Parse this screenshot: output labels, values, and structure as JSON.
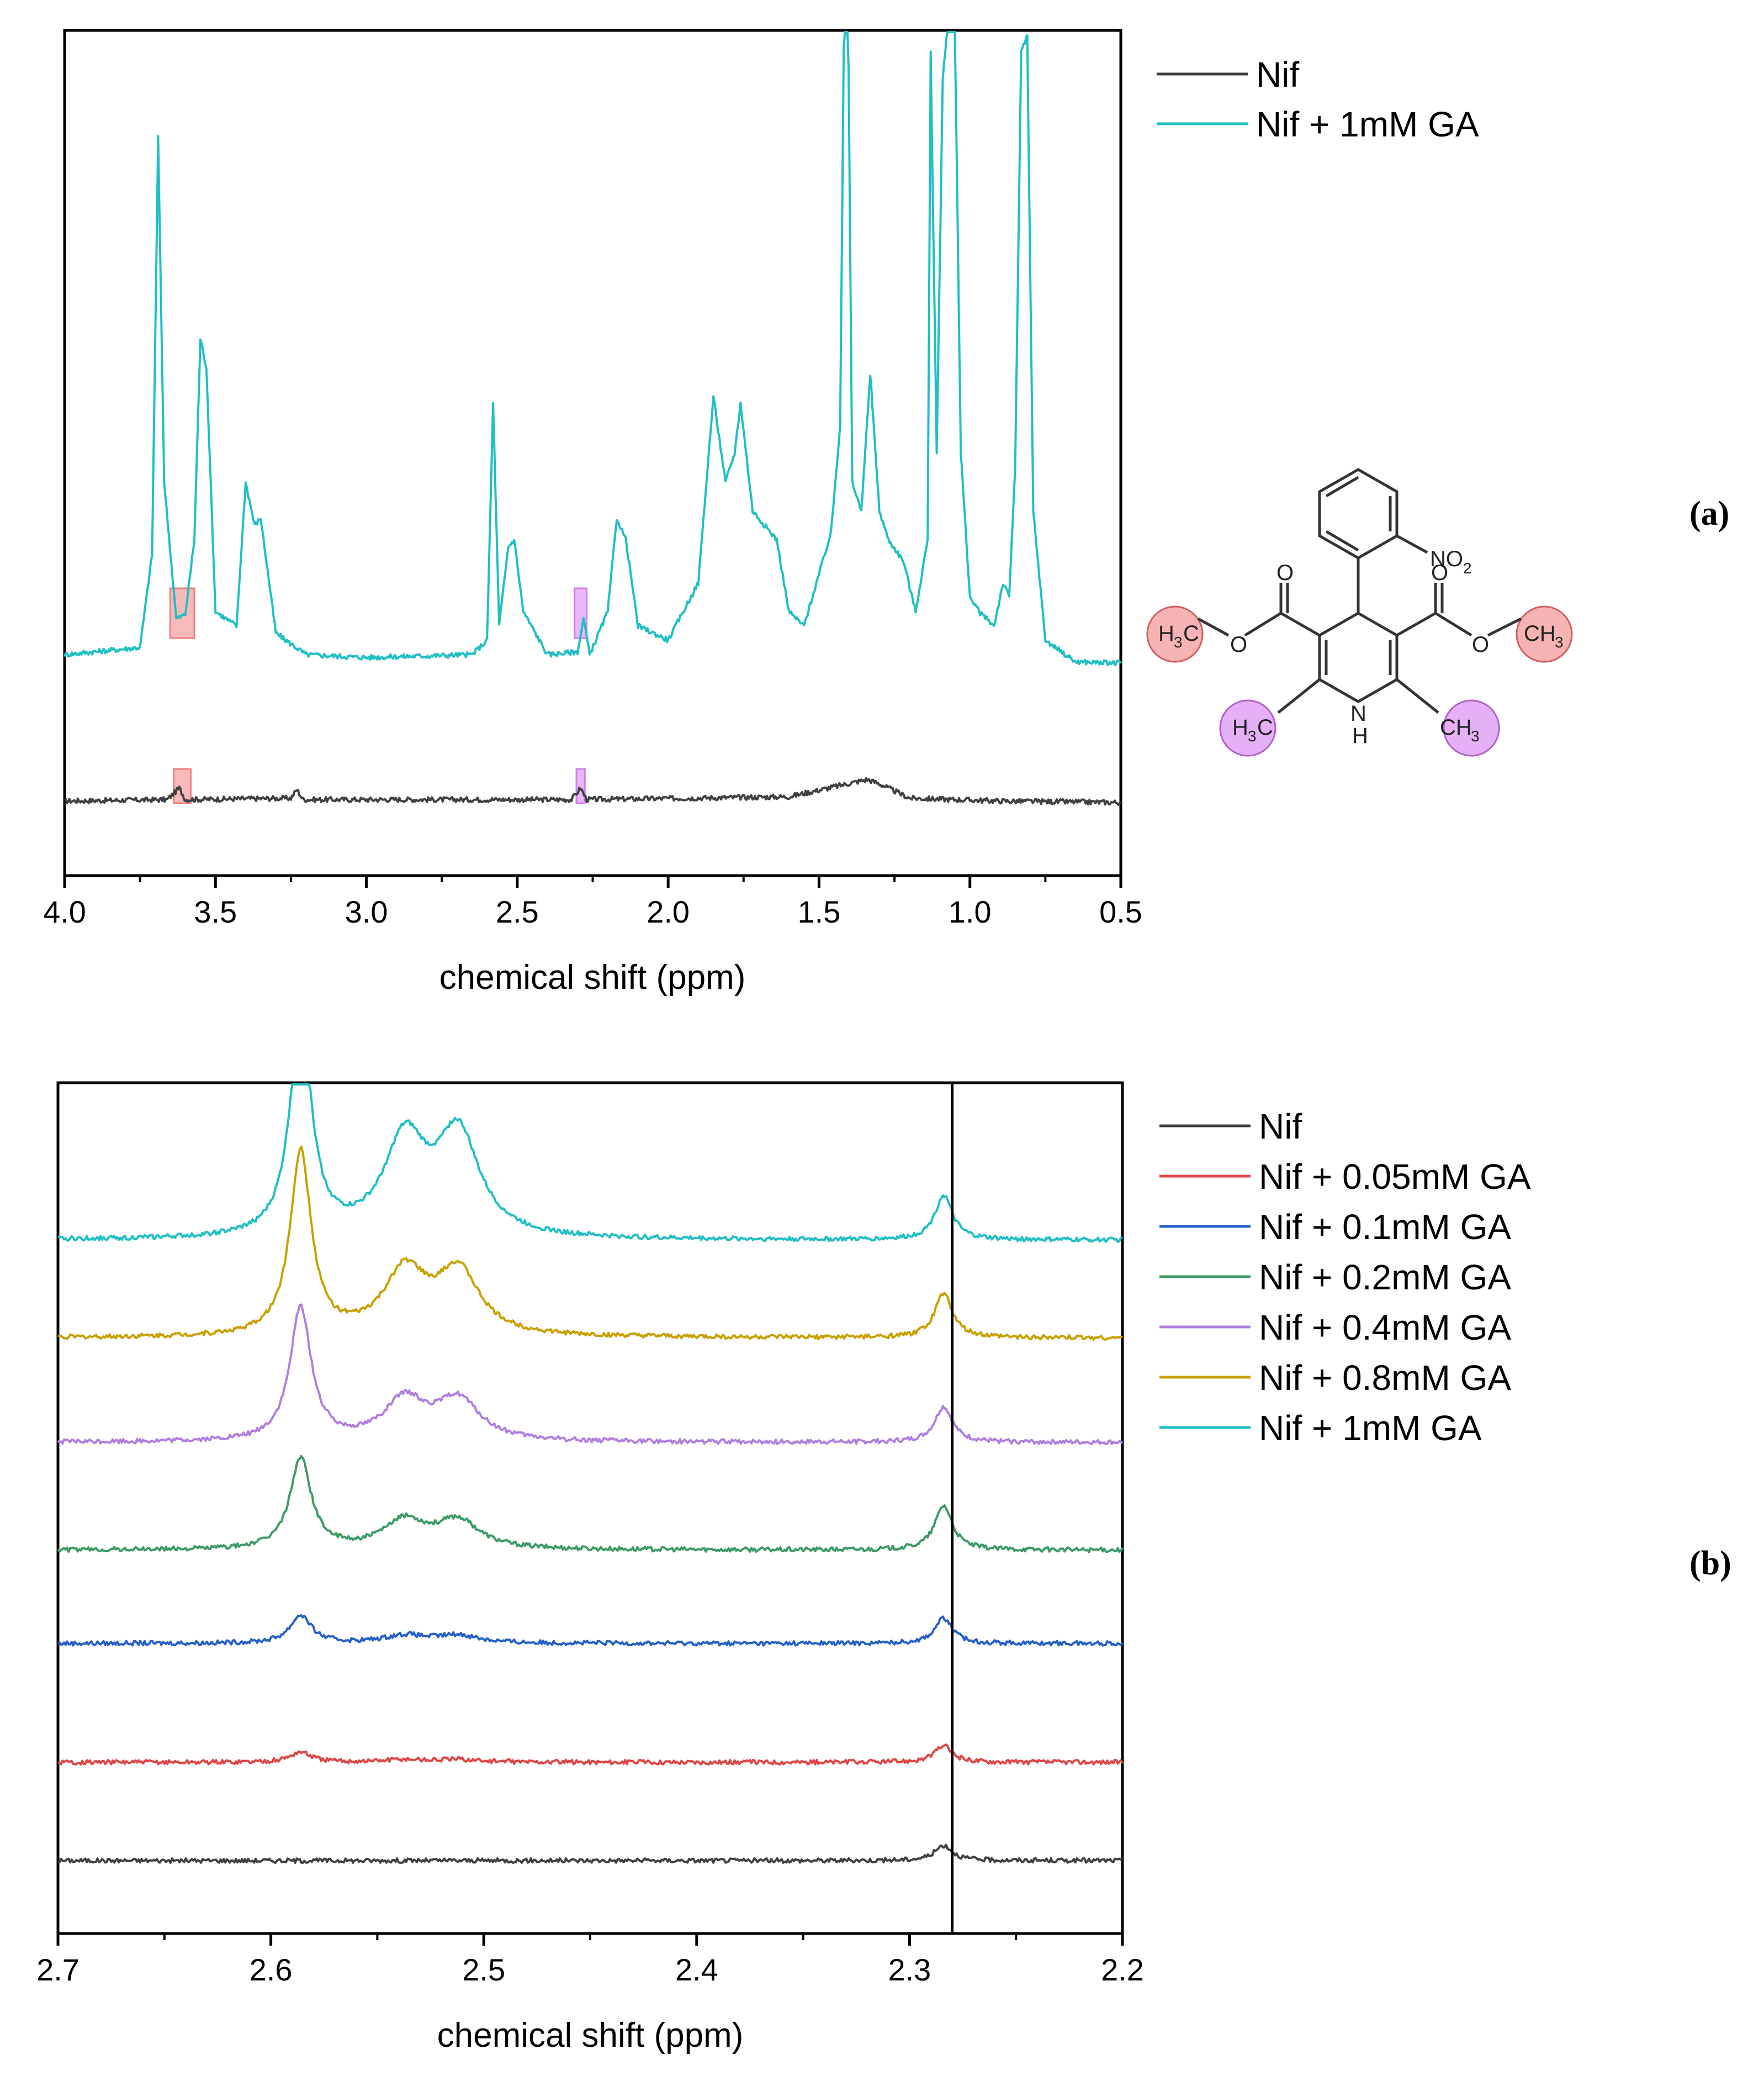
{
  "chart_data": [
    {
      "id": "a",
      "type": "line",
      "panel_label": "(a)",
      "xlabel": "chemical shift (ppm)",
      "ylabel": "",
      "xlim": [
        4.0,
        0.5
      ],
      "x_reversed": true,
      "xticks": [
        "4.0",
        "3.5",
        "3.0",
        "2.5",
        "2.0",
        "1.5",
        "1.0",
        "0.5"
      ],
      "y_axis_ticks": false,
      "legend_position": "top-right, outside plot area",
      "series": [
        {
          "name": "Nif",
          "color": "#404040",
          "baseline": 0.0,
          "points": [
            [
              4.0,
              0.0
            ],
            [
              3.66,
              0.01
            ],
            [
              3.62,
              0.09
            ],
            [
              3.6,
              0.01
            ],
            [
              3.25,
              0.02
            ],
            [
              3.23,
              0.08
            ],
            [
              3.21,
              0.01
            ],
            [
              2.32,
              0.01
            ],
            [
              2.29,
              0.09
            ],
            [
              2.27,
              0.01
            ],
            [
              1.6,
              0.03
            ],
            [
              1.34,
              0.15
            ],
            [
              1.3,
              0.12
            ],
            [
              1.2,
              0.02
            ],
            [
              0.9,
              0.0
            ],
            [
              0.5,
              -0.01
            ]
          ]
        },
        {
          "name": "Nif + 1mM GA",
          "color": "#1fbfc4",
          "baseline": 1.0,
          "points": [
            [
              4.0,
              1.0
            ],
            [
              3.75,
              1.05
            ],
            [
              3.71,
              1.7
            ],
            [
              3.69,
              4.6
            ],
            [
              3.67,
              2.2
            ],
            [
              3.63,
              1.25
            ],
            [
              3.6,
              1.28
            ],
            [
              3.57,
              1.8
            ],
            [
              3.55,
              3.2
            ],
            [
              3.53,
              3.0
            ],
            [
              3.5,
              1.3
            ],
            [
              3.43,
              1.2
            ],
            [
              3.4,
              2.2
            ],
            [
              3.37,
              1.9
            ],
            [
              3.35,
              1.95
            ],
            [
              3.3,
              1.15
            ],
            [
              3.2,
              1.0
            ],
            [
              3.0,
              0.98
            ],
            [
              2.65,
              1.0
            ],
            [
              2.6,
              1.1
            ],
            [
              2.58,
              2.75
            ],
            [
              2.56,
              1.2
            ],
            [
              2.53,
              1.75
            ],
            [
              2.51,
              1.8
            ],
            [
              2.48,
              1.3
            ],
            [
              2.4,
              1.0
            ],
            [
              2.3,
              1.02
            ],
            [
              2.28,
              1.25
            ],
            [
              2.26,
              1.0
            ],
            [
              2.2,
              1.3
            ],
            [
              2.17,
              1.95
            ],
            [
              2.14,
              1.8
            ],
            [
              2.1,
              1.2
            ],
            [
              2.0,
              1.1
            ],
            [
              1.9,
              1.5
            ],
            [
              1.85,
              2.8
            ],
            [
              1.81,
              2.2
            ],
            [
              1.78,
              2.4
            ],
            [
              1.76,
              2.75
            ],
            [
              1.72,
              2.0
            ],
            [
              1.68,
              1.9
            ],
            [
              1.64,
              1.8
            ],
            [
              1.6,
              1.3
            ],
            [
              1.55,
              1.2
            ],
            [
              1.46,
              1.85
            ],
            [
              1.43,
              2.6
            ],
            [
              1.41,
              7.0
            ],
            [
              1.39,
              2.2
            ],
            [
              1.36,
              2.0
            ],
            [
              1.33,
              2.95
            ],
            [
              1.3,
              2.0
            ],
            [
              1.27,
              1.8
            ],
            [
              1.22,
              1.65
            ],
            [
              1.18,
              1.3
            ],
            [
              1.14,
              1.8
            ],
            [
              1.13,
              5.2
            ],
            [
              1.11,
              2.4
            ],
            [
              1.09,
              5.0
            ],
            [
              1.07,
              5.5
            ],
            [
              1.05,
              5.4
            ],
            [
              1.03,
              2.4
            ],
            [
              1.0,
              1.4
            ],
            [
              0.97,
              1.3
            ],
            [
              0.92,
              1.2
            ],
            [
              0.89,
              1.5
            ],
            [
              0.87,
              1.4
            ],
            [
              0.85,
              2.3
            ],
            [
              0.83,
              5.2
            ],
            [
              0.81,
              5.3
            ],
            [
              0.79,
              2.0
            ],
            [
              0.75,
              1.1
            ],
            [
              0.65,
              0.95
            ],
            [
              0.5,
              0.94
            ]
          ]
        }
      ],
      "highlights": [
        {
          "x_from": 3.65,
          "x_to": 3.57,
          "color": "#f08080",
          "label": ""
        },
        {
          "x_from": 2.31,
          "x_to": 2.27,
          "color": "#d37cf0",
          "label": ""
        }
      ]
    },
    {
      "id": "b",
      "type": "line",
      "panel_label": "(b)",
      "xlabel": "chemical shift (ppm)",
      "ylabel": "",
      "xlim": [
        2.7,
        2.2
      ],
      "x_reversed": true,
      "xticks": [
        "2.7",
        "2.6",
        "2.5",
        "2.4",
        "2.3",
        "2.2"
      ],
      "y_axis_ticks": false,
      "reference_line_x": 2.28,
      "legend_position": "top-right, outside plot area",
      "series": [
        {
          "name": "Nif",
          "color": "#404040",
          "offset": 0,
          "peaks": [
            0.0,
            0.0,
            0.0,
            0.12
          ]
        },
        {
          "name": "Nif + 0.05mM GA",
          "color": "#e04545",
          "offset": 1,
          "peaks": [
            0.08,
            0.02,
            0.02,
            0.13
          ]
        },
        {
          "name": "Nif + 0.1mM GA",
          "color": "#2460c8",
          "offset": 2,
          "peaks": [
            0.22,
            0.06,
            0.06,
            0.2
          ]
        },
        {
          "name": "Nif + 0.2mM GA",
          "color": "#3c9a66",
          "offset": 3,
          "peaks": [
            0.72,
            0.22,
            0.22,
            0.35
          ]
        },
        {
          "name": "Nif + 0.4mM GA",
          "color": "#b07ee0",
          "offset": 4,
          "peaks": [
            1.05,
            0.32,
            0.32,
            0.28
          ]
        },
        {
          "name": "Nif + 0.8mM GA",
          "color": "#c8a000",
          "offset": 5,
          "peaks": [
            1.45,
            0.5,
            0.5,
            0.35
          ]
        },
        {
          "name": "Nif + 1mM GA",
          "color": "#1fbfc4",
          "offset": 6,
          "peaks": [
            1.75,
            0.75,
            0.8,
            0.35
          ]
        }
      ],
      "peak_positions_ppm": [
        2.586,
        2.537,
        2.512,
        2.284
      ]
    }
  ],
  "structure": {
    "labels": {
      "nitro": "NO",
      "nitro_sub": "2",
      "carbonyl_o": "O",
      "ester_o": "O",
      "nh_n": "N",
      "nh_h": "H",
      "methyl_h": "H",
      "methyl_c": "C",
      "methyl_c_left": "CH",
      "methyl_sub": "3"
    },
    "highlight_colors": {
      "methoxy": "#f08080",
      "ring_methyl": "#d37cf0"
    }
  }
}
